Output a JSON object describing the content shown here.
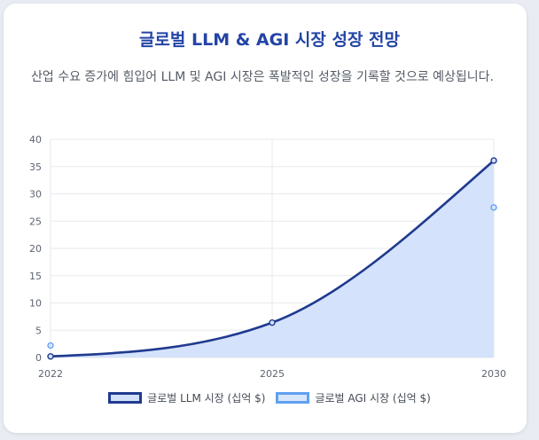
{
  "title": "글로벌 LLM & AGI 시장 성장 전망",
  "subtitle": "산업 수요 증가에 힘입어 LLM 및 AGI 시장은 폭발적인 성장을 기록할 것으로 예상됩니다.",
  "colors": {
    "title": "#2344a6",
    "llm_line": "#1f3a8f",
    "llm_fill": "#d3e0fb",
    "agi_line": "#5fa0f2",
    "agi_fill": "#d7e6fb"
  },
  "chart_data": {
    "type": "area",
    "categories": [
      "2022",
      "2025",
      "2030"
    ],
    "ylim": [
      0,
      40
    ],
    "yticks": [
      "0",
      "5",
      "10",
      "15",
      "20",
      "25",
      "30",
      "35",
      "40"
    ],
    "grid": true,
    "legend_position": "bottom",
    "series": [
      {
        "name": "글로벌 LLM 시장 (십억 $)",
        "values": [
          0.2,
          6.4,
          36.1
        ]
      },
      {
        "name": "글로벌 AGI 시장 (십억 $)",
        "values": [
          2.2,
          null,
          27.5
        ]
      }
    ]
  }
}
